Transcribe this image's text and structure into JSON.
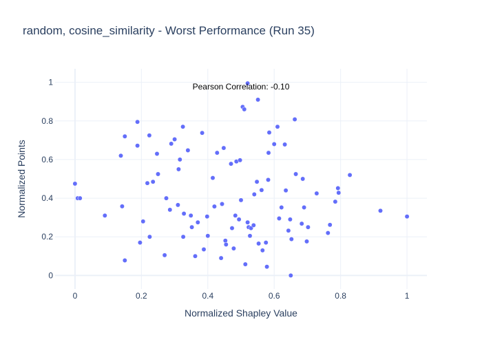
{
  "chart_data": {
    "type": "scatter",
    "title": "random, cosine_similarity - Worst Performance (Run 35)",
    "xlabel": "Normalized Shapley Value",
    "ylabel": "Normalized Points",
    "xlim": [
      -0.06,
      1.06
    ],
    "ylim": [
      -0.07,
      1.07
    ],
    "xticks": [
      0,
      0.2,
      0.4,
      0.6,
      0.8,
      1
    ],
    "xtick_labels": [
      "0",
      "0.2",
      "0.4",
      "0.6",
      "0.8",
      "1"
    ],
    "yticks": [
      0,
      0.2,
      0.4,
      0.6,
      0.8,
      1
    ],
    "ytick_labels": [
      "0",
      "0.2",
      "0.4",
      "0.6",
      "0.8",
      "1"
    ],
    "grid": true,
    "annotation": "Pearson Correlation: -0.10",
    "marker_color": "#636efa",
    "points": [
      [
        0.0,
        0.475
      ],
      [
        0.008,
        0.4
      ],
      [
        0.015,
        0.4
      ],
      [
        0.09,
        0.31
      ],
      [
        0.138,
        0.62
      ],
      [
        0.142,
        0.358
      ],
      [
        0.15,
        0.72
      ],
      [
        0.15,
        0.078
      ],
      [
        0.188,
        0.795
      ],
      [
        0.188,
        0.672
      ],
      [
        0.196,
        0.17
      ],
      [
        0.205,
        0.28
      ],
      [
        0.218,
        0.478
      ],
      [
        0.224,
        0.725
      ],
      [
        0.225,
        0.2
      ],
      [
        0.235,
        0.485
      ],
      [
        0.247,
        0.63
      ],
      [
        0.25,
        0.525
      ],
      [
        0.27,
        0.105
      ],
      [
        0.275,
        0.4
      ],
      [
        0.286,
        0.34
      ],
      [
        0.29,
        0.682
      ],
      [
        0.3,
        0.705
      ],
      [
        0.31,
        0.365
      ],
      [
        0.312,
        0.55
      ],
      [
        0.316,
        0.6
      ],
      [
        0.325,
        0.77
      ],
      [
        0.326,
        0.2
      ],
      [
        0.328,
        0.32
      ],
      [
        0.34,
        0.648
      ],
      [
        0.349,
        0.31
      ],
      [
        0.352,
        0.25
      ],
      [
        0.362,
        0.1
      ],
      [
        0.37,
        0.275
      ],
      [
        0.383,
        0.738
      ],
      [
        0.388,
        0.135
      ],
      [
        0.398,
        0.305
      ],
      [
        0.4,
        0.205
      ],
      [
        0.415,
        0.505
      ],
      [
        0.42,
        0.357
      ],
      [
        0.428,
        0.635
      ],
      [
        0.44,
        0.09
      ],
      [
        0.443,
        0.37
      ],
      [
        0.448,
        0.66
      ],
      [
        0.453,
        0.18
      ],
      [
        0.455,
        0.16
      ],
      [
        0.47,
        0.578
      ],
      [
        0.473,
        0.245
      ],
      [
        0.478,
        0.14
      ],
      [
        0.483,
        0.31
      ],
      [
        0.486,
        0.59
      ],
      [
        0.494,
        0.29
      ],
      [
        0.497,
        0.597
      ],
      [
        0.5,
        0.39
      ],
      [
        0.505,
        0.873
      ],
      [
        0.51,
        0.86
      ],
      [
        0.513,
        0.058
      ],
      [
        0.52,
        0.995
      ],
      [
        0.52,
        0.275
      ],
      [
        0.523,
        0.25
      ],
      [
        0.527,
        0.205
      ],
      [
        0.53,
        0.245
      ],
      [
        0.538,
        0.26
      ],
      [
        0.54,
        0.42
      ],
      [
        0.548,
        0.485
      ],
      [
        0.551,
        0.91
      ],
      [
        0.553,
        0.165
      ],
      [
        0.562,
        0.442
      ],
      [
        0.565,
        0.13
      ],
      [
        0.575,
        0.17
      ],
      [
        0.578,
        0.045
      ],
      [
        0.582,
        0.495
      ],
      [
        0.583,
        0.635
      ],
      [
        0.585,
        0.74
      ],
      [
        0.6,
        0.68
      ],
      [
        0.61,
        0.77
      ],
      [
        0.615,
        0.295
      ],
      [
        0.622,
        0.352
      ],
      [
        0.632,
        0.678
      ],
      [
        0.635,
        0.44
      ],
      [
        0.643,
        0.232
      ],
      [
        0.648,
        0.29
      ],
      [
        0.65,
        0.0
      ],
      [
        0.652,
        0.188
      ],
      [
        0.662,
        0.808
      ],
      [
        0.665,
        0.525
      ],
      [
        0.683,
        0.268
      ],
      [
        0.686,
        0.5
      ],
      [
        0.69,
        0.352
      ],
      [
        0.698,
        0.176
      ],
      [
        0.702,
        0.25
      ],
      [
        0.728,
        0.425
      ],
      [
        0.762,
        0.22
      ],
      [
        0.768,
        0.262
      ],
      [
        0.784,
        0.382
      ],
      [
        0.792,
        0.452
      ],
      [
        0.794,
        0.428
      ],
      [
        0.828,
        0.52
      ],
      [
        0.92,
        0.335
      ],
      [
        1.0,
        0.305
      ]
    ]
  }
}
